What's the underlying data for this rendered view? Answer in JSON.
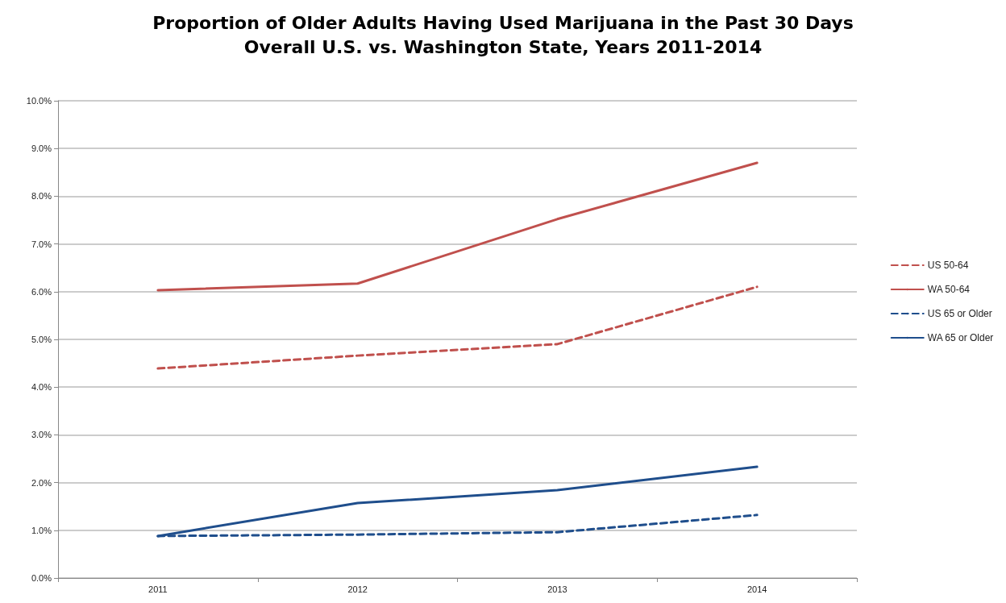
{
  "chart_data": {
    "type": "line",
    "title": "Proportion of Older Adults Having Used Marijuana in the Past 30 Days",
    "subtitle": "Overall U.S. vs. Washington State, Years 2011-2014",
    "categories": [
      "2011",
      "2012",
      "2013",
      "2014"
    ],
    "series": [
      {
        "name": "US 50-64",
        "color": "#c0504d",
        "line_style": "dashed",
        "values": [
          4.39,
          4.66,
          4.9,
          6.1
        ]
      },
      {
        "name": "WA 50-64",
        "color": "#c0504d",
        "line_style": "solid",
        "values": [
          6.03,
          6.17,
          7.52,
          8.7
        ]
      },
      {
        "name": "US 65 or Older",
        "color": "#1f4e8c",
        "line_style": "dashed",
        "values": [
          0.88,
          0.91,
          0.96,
          1.32
        ]
      },
      {
        "name": "WA 65 or Older",
        "color": "#1f4e8c",
        "line_style": "solid",
        "values": [
          0.88,
          1.57,
          1.84,
          2.33
        ]
      }
    ],
    "ylim": [
      0,
      10
    ],
    "yticks": [
      {
        "value": 0,
        "label": "0.0%"
      },
      {
        "value": 1,
        "label": "1.0%"
      },
      {
        "value": 2,
        "label": "2.0%"
      },
      {
        "value": 3,
        "label": "3.0%"
      },
      {
        "value": 4,
        "label": "4.0%"
      },
      {
        "value": 5,
        "label": "5.0%"
      },
      {
        "value": 6,
        "label": "6.0%"
      },
      {
        "value": 7,
        "label": "7.0%"
      },
      {
        "value": 8,
        "label": "8.0%"
      },
      {
        "value": 9,
        "label": "9.0%"
      },
      {
        "value": 10,
        "label": "10.0%"
      }
    ],
    "grid": "y",
    "legend": "right",
    "marker": "none"
  }
}
